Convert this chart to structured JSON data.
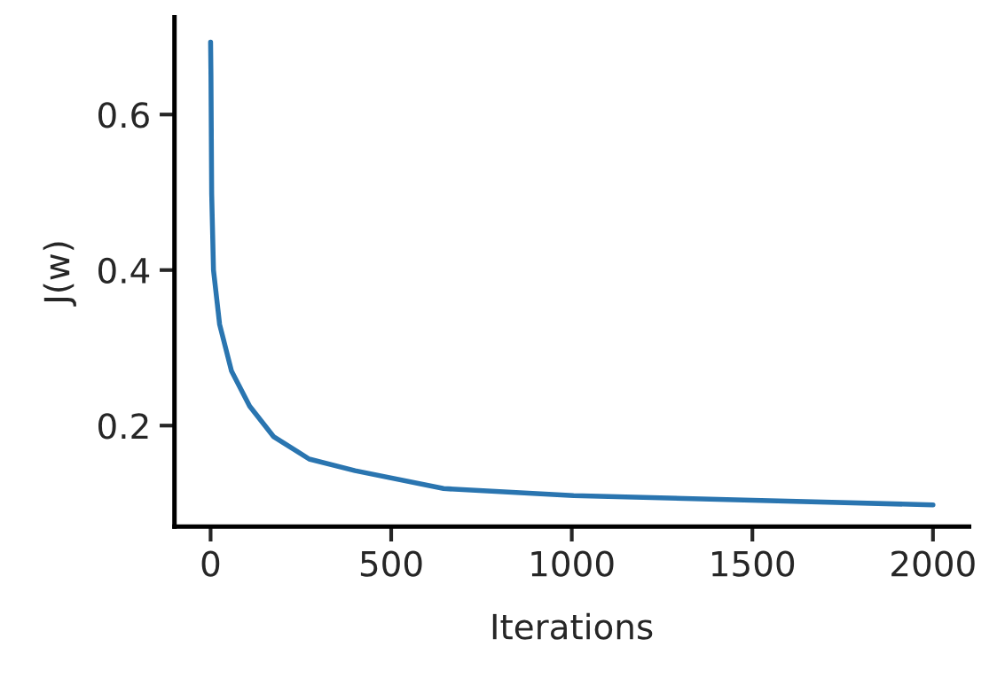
{
  "chart_data": {
    "type": "line",
    "xlabel": "Iterations",
    "ylabel": "J(w)",
    "x": [
      0,
      1,
      3,
      8,
      25,
      58,
      108,
      174,
      273,
      400,
      645,
      1005,
      1500,
      2000
    ],
    "series": [
      {
        "color": "#2a75b0",
        "values": [
          0.693,
          0.65,
          0.498,
          0.4,
          0.33,
          0.27,
          0.225,
          0.186,
          0.157,
          0.142,
          0.119,
          0.11,
          0.104,
          0.098
        ]
      }
    ],
    "xlim": [
      -100,
      2100
    ],
    "ylim": [
      0.07,
      0.725
    ],
    "xticks": [
      0,
      500,
      1000,
      1500,
      2000
    ],
    "yticks": [
      0.2,
      0.4,
      0.6
    ],
    "grid": false,
    "legend": false
  }
}
